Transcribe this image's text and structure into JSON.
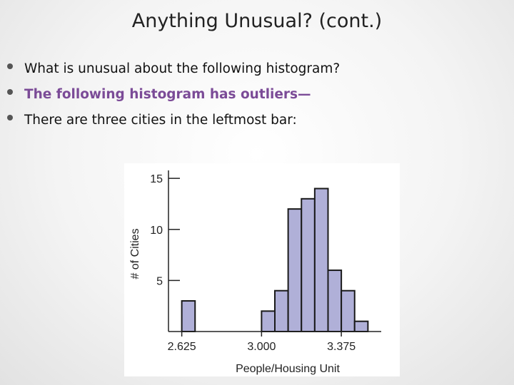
{
  "slide": {
    "title": "Anything Unusual? (cont.)",
    "bullets": [
      {
        "text": "What is unusual about the following histogram?",
        "emphasis": false
      },
      {
        "text": "The following histogram has outliers—",
        "emphasis": true
      },
      {
        "text": "There are three cities in the leftmost bar:",
        "emphasis": false
      }
    ],
    "accent_color": "#7b4b97"
  },
  "chart_data": {
    "type": "bar",
    "title": "",
    "xlabel": "People/Housing Unit",
    "ylabel": "# of Cities",
    "x_ticks": [
      "2.625",
      "3.000",
      "3.375"
    ],
    "y_ticks": [
      "5",
      "10",
      "15"
    ],
    "xlim": [
      2.5625,
      3.5625
    ],
    "ylim": [
      0,
      15.5
    ],
    "bin_width": 0.0625,
    "bins": [
      {
        "start": 2.5625,
        "count": 0
      },
      {
        "start": 2.625,
        "count": 3
      },
      {
        "start": 2.6875,
        "count": 0
      },
      {
        "start": 2.75,
        "count": 0
      },
      {
        "start": 2.8125,
        "count": 0
      },
      {
        "start": 2.875,
        "count": 0
      },
      {
        "start": 2.9375,
        "count": 0
      },
      {
        "start": 3.0,
        "count": 2
      },
      {
        "start": 3.0625,
        "count": 4
      },
      {
        "start": 3.125,
        "count": 12
      },
      {
        "start": 3.1875,
        "count": 13
      },
      {
        "start": 3.25,
        "count": 14
      },
      {
        "start": 3.3125,
        "count": 6
      },
      {
        "start": 3.375,
        "count": 4
      },
      {
        "start": 3.4375,
        "count": 1
      }
    ],
    "bar_color": "#b0b0d8",
    "bar_edge_color": "#1a1a1a",
    "grid": false
  }
}
